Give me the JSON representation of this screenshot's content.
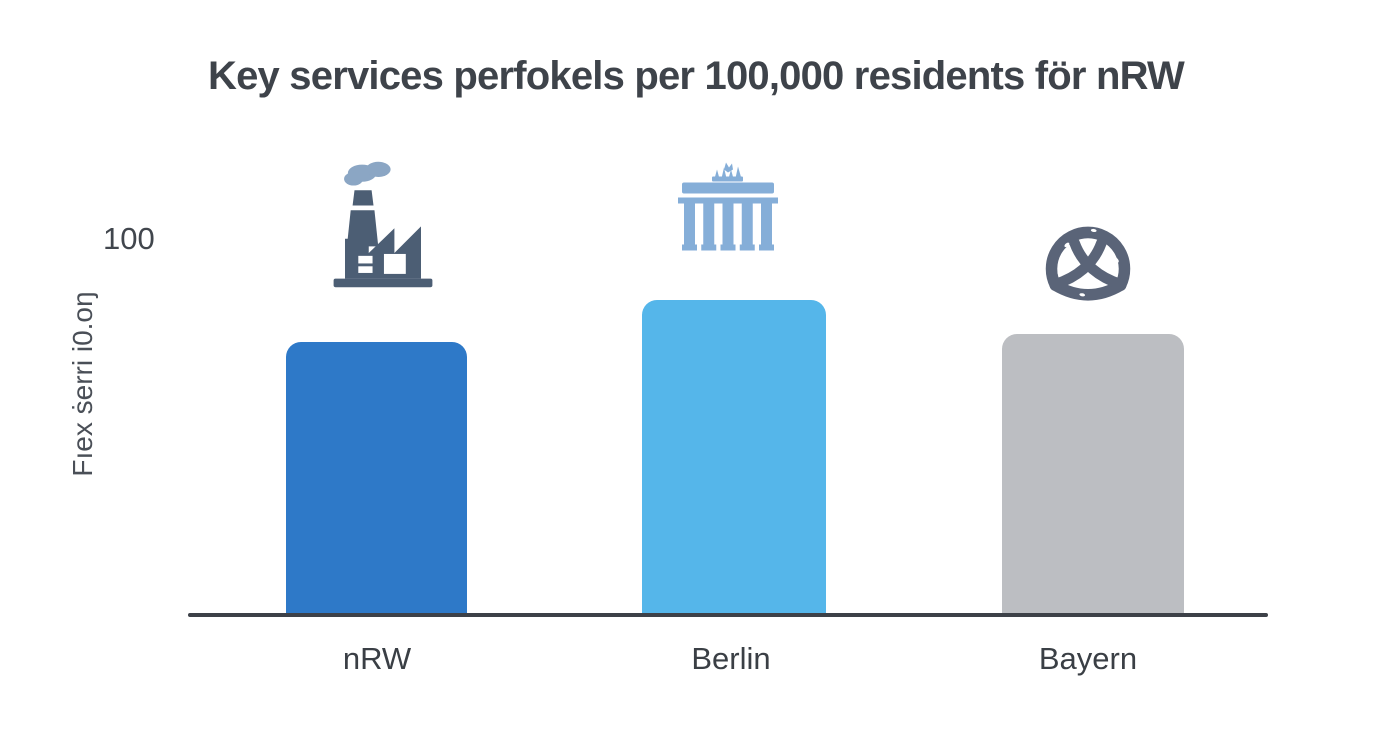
{
  "chart_data": {
    "type": "bar",
    "title": "Key services perfokels per 100,000 residents för nRW",
    "categories": [
      "nRW",
      "Berlin",
      "Bayern"
    ],
    "values": [
      73,
      84,
      75
    ],
    "ylabel": "Fıex ṡerri i0.oŋ",
    "y_tick_labels": [
      "100"
    ],
    "ylim": [
      0,
      100
    ],
    "grid": false,
    "legend": false,
    "bar_colors": [
      "#2e79c8",
      "#55b6ea",
      "#bcbec2"
    ],
    "bar_icons": [
      "factory-icon",
      "brandenburg-gate-icon",
      "pretzel-icon"
    ]
  },
  "y_axis": {
    "tick_label": "100",
    "axis_label": "Fıex ṡerri i0.oŋ"
  },
  "icons": {
    "factory": {
      "color": "#4c5e74",
      "smoke_color": "#8ba6c4"
    },
    "gate": {
      "color": "#85aed8"
    },
    "pretzel": {
      "color": "#5a6478",
      "salt_color": "#ffffff"
    }
  },
  "colors": {
    "background": "#ffffff",
    "title_text": "#3e434a",
    "axis_line": "#3d4148",
    "tick_text": "#41464d",
    "label_text": "#3a3f45"
  }
}
